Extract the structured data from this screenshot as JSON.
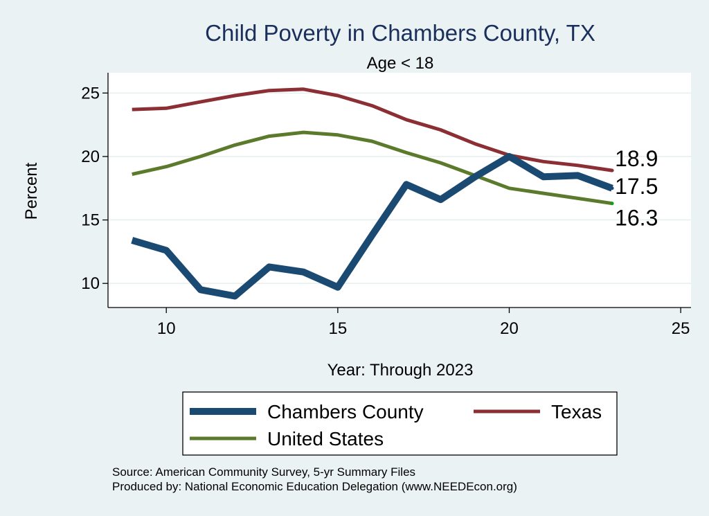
{
  "chart_data": {
    "type": "line",
    "title": "Child Poverty in Chambers County, TX",
    "subtitle": "Age < 18",
    "xlabel": "Year: Through 2023",
    "ylabel": "Percent",
    "xlim": [
      8.3,
      25.3
    ],
    "ylim": [
      8.1,
      26.6
    ],
    "xticks": [
      10,
      15,
      20,
      25
    ],
    "yticks": [
      10,
      15,
      20,
      25
    ],
    "x": [
      9,
      10,
      11,
      12,
      13,
      14,
      15,
      16,
      17,
      18,
      19,
      20,
      21,
      22,
      23
    ],
    "series": [
      {
        "name": "Chambers County",
        "color": "#1a4a72",
        "values": [
          13.4,
          12.6,
          9.5,
          9.0,
          11.3,
          10.9,
          9.7,
          13.8,
          17.8,
          16.6,
          18.4,
          20.0,
          18.4,
          18.5,
          17.5
        ],
        "end_label": "17.5"
      },
      {
        "name": "Texas",
        "color": "#8b2f35",
        "values": [
          23.7,
          23.8,
          24.3,
          24.8,
          25.2,
          25.3,
          24.8,
          24.0,
          22.9,
          22.1,
          21.0,
          20.1,
          19.6,
          19.3,
          18.9
        ],
        "end_label": "18.9"
      },
      {
        "name": "United States",
        "color": "#5b7a2b",
        "values": [
          18.6,
          19.2,
          20.0,
          20.9,
          21.6,
          21.9,
          21.7,
          21.2,
          20.3,
          19.5,
          18.5,
          17.5,
          17.1,
          16.7,
          16.3
        ],
        "end_label": "16.3"
      }
    ],
    "legend": [
      "Chambers County",
      "Texas",
      "United States"
    ],
    "legend_position": "bottom",
    "source": "Source: American Community Survey, 5-yr Summary Files",
    "producer": "Produced by: National Economic Education Delegation (www.NEEDEcon.org)"
  }
}
